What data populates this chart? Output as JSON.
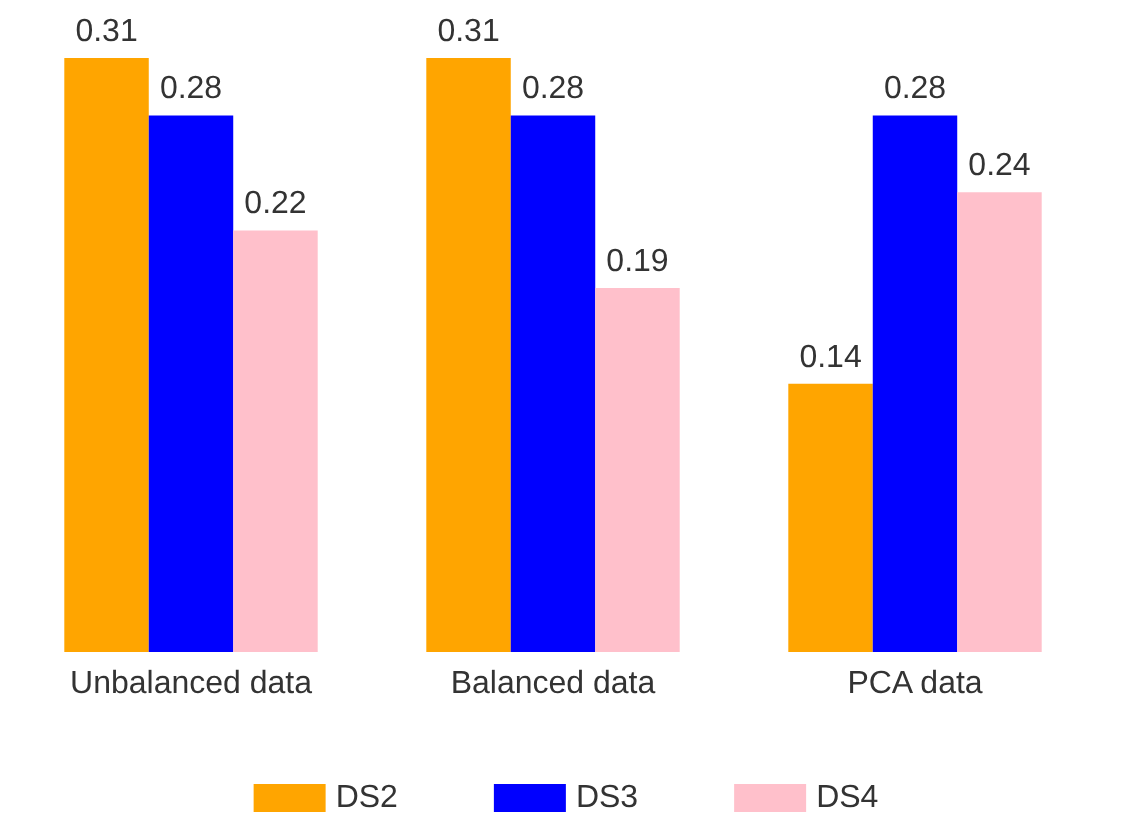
{
  "chart_data": {
    "type": "bar",
    "categories": [
      "Unbalanced data",
      "Balanced data",
      "PCA data"
    ],
    "series": [
      {
        "name": "DS2",
        "color": "#ffa500",
        "values": [
          0.31,
          0.31,
          0.14
        ]
      },
      {
        "name": "DS3",
        "color": "#0000ff",
        "values": [
          0.28,
          0.28,
          0.28
        ]
      },
      {
        "name": "DS4",
        "color": "#ffc0cb",
        "values": [
          0.22,
          0.19,
          0.24
        ]
      }
    ],
    "data_labels": true,
    "legend": "bottom"
  }
}
